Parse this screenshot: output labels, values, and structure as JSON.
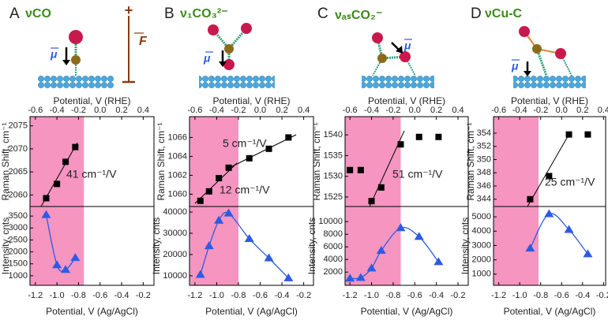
{
  "chart_data": [
    {
      "type": "scatter",
      "label": "A",
      "title": "νCO",
      "dipole_label": "μ",
      "field_label": "F",
      "field_plus": "+",
      "x2label": "Potential, V (RHE)",
      "xlabel": "Potential, V (Ag/AgCl)",
      "xlim": [
        -1.25,
        -0.1
      ],
      "xticks": [
        -1.2,
        {
          "value": -1,
          "label": "-1.0"
        },
        -0.8,
        -0.6,
        -0.4,
        -0.2
      ],
      "x2lim": [
        -0.65,
        0.5
      ],
      "x2ticks": [
        -0.6,
        -0.4,
        -0.2,
        {
          "value": 0,
          "label": "0.0"
        },
        0.2,
        0.4
      ],
      "shade_xmax": -0.75,
      "shade_color": "#f595c0",
      "raman": {
        "ylabel": "Raman Shift, cm⁻¹",
        "ylim": [
          2057.5,
          2077
        ],
        "yticks": [
          2060,
          2065,
          2070,
          2075
        ],
        "x": [
          -1.1,
          -1,
          -0.92,
          -0.83
        ],
        "values": [
          2059.3,
          2062.4,
          2067.2,
          2070.4
        ],
        "color": "#000000",
        "annotations": [
          "41 cm⁻¹/V"
        ]
      },
      "intensity": {
        "ylabel": "Intensity, cnts",
        "ylim": [
          600,
          3900
        ],
        "yticks": [
          1000,
          1500,
          2000,
          2500,
          3000,
          3500
        ],
        "x": [
          -1.1,
          -1,
          -0.92,
          -0.83
        ],
        "values": [
          3550,
          1450,
          1250,
          1750
        ],
        "color": "#2d5be3"
      }
    },
    {
      "type": "scatter",
      "label": "B",
      "title": "ν₁CO₃²⁻",
      "dipole_label": "μ",
      "x2label": "Potential, V (RHE)",
      "xlabel": "Potential, V (Ag/AgCl)",
      "xlim": [
        -1.25,
        -0.11
      ],
      "xticks": [
        -1.2,
        {
          "value": -1,
          "label": "-1.0"
        },
        -0.8,
        -0.6,
        -0.4,
        -0.2
      ],
      "x2lim": [
        -0.65,
        0.49
      ],
      "x2ticks": [
        -0.6,
        -0.4,
        -0.2,
        {
          "value": 0,
          "label": "0.0"
        },
        0.2,
        0.4
      ],
      "shade_xmax": -0.8,
      "shade_color": "#f595c0",
      "raman": {
        "ylabel": "Raman Shift, cm⁻¹",
        "ylim": [
          1058.7,
          1068.2
        ],
        "yticks": [
          1060,
          1062,
          1064,
          1066
        ],
        "x": [
          -1.15,
          -1.07,
          -0.98,
          -0.89,
          -0.7,
          -0.52,
          -0.34
        ],
        "values": [
          1059.3,
          1060.3,
          1061.7,
          1062.8,
          1063.8,
          1064.8,
          1066
        ],
        "color": "#000000",
        "annotations": [
          "5 cm⁻¹/V",
          "12 cm⁻¹/V"
        ]
      },
      "intensity": {
        "ylabel": "Intensity, cnts",
        "ylim": [
          5500,
          42600
        ],
        "yticks": [
          10000,
          20000,
          30000,
          40000
        ],
        "x": [
          -1.15,
          -1.07,
          -0.98,
          -0.89,
          -0.7,
          -0.52,
          -0.34
        ],
        "values": [
          10500,
          24000,
          36000,
          39400,
          27400,
          18300,
          8900
        ],
        "color": "#2d5be3"
      }
    },
    {
      "type": "scatter",
      "label": "C",
      "title": "νₐₛCO₂⁻",
      "dipole_label": "μ",
      "x2label": "Potential, V (RHE)",
      "xlabel": "Potential, V (Ag/AgCl)",
      "xlim": [
        -1.245,
        -0.105
      ],
      "xticks": [
        -1.2,
        {
          "value": -1,
          "label": "-1.0"
        },
        -0.8,
        -0.6,
        -0.4,
        -0.2
      ],
      "x2lim": [
        -0.645,
        0.495
      ],
      "x2ticks": [
        -0.6,
        -0.4,
        -0.2,
        {
          "value": 0,
          "label": "0.0"
        },
        0.2,
        0.4
      ],
      "shade_xmax": -0.73,
      "shade_color": "#f595c0",
      "raman": {
        "ylabel": "Raman Shift, cm⁻¹",
        "ylim": [
          1522.7,
          1544.4
        ],
        "yticks": [
          1525,
          1530,
          1535,
          1540
        ],
        "x": [
          -1.2,
          -1.1,
          -1,
          -0.91,
          -0.73,
          -0.56,
          -0.38
        ],
        "values": [
          1531.5,
          1531.5,
          1524,
          1527.3,
          1537.7,
          1539.5,
          1539.5
        ],
        "color": "#000000",
        "annotations": [
          "51 cm⁻¹/V"
        ]
      },
      "intensity": {
        "ylabel": "Intensity, cnts",
        "ylim": [
          -100,
          12400
        ],
        "yticks": [
          2000,
          4000,
          6000,
          8000,
          10000
        ],
        "x": [
          -1.2,
          -1.1,
          -1,
          -0.91,
          -0.73,
          -0.56,
          -0.38
        ],
        "values": [
          1000,
          1100,
          2600,
          5400,
          9000,
          7600,
          3600
        ],
        "color": "#2d5be3"
      }
    },
    {
      "type": "scatter",
      "label": "D",
      "title": "νCu-C",
      "dipole_label": "μ",
      "x2label": "Potential, V (RHE)",
      "xlabel": "Potential, V (Ag/AgCl)",
      "xlim": [
        -1.25,
        -0.18
      ],
      "xticks": [
        -1.2,
        {
          "value": -1,
          "label": "-1.0"
        },
        -0.8,
        -0.6,
        -0.4,
        -0.2
      ],
      "x2lim": [
        -0.65,
        0.42
      ],
      "x2ticks": [
        -0.6,
        -0.4,
        -0.2,
        {
          "value": 0,
          "label": "0.0"
        },
        0.2,
        0.4
      ],
      "shade_xmax": -0.82,
      "shade_color": "#f595c0",
      "raman": {
        "ylabel": "Raman Shift, cm⁻¹",
        "ylim": [
          342.9,
          356.5
        ],
        "yticks": [
          344,
          346,
          348,
          350,
          352,
          354
        ],
        "x": [
          -0.9,
          -0.72,
          -0.53,
          -0.35
        ],
        "values": [
          344,
          347.5,
          353.8,
          353.8
        ],
        "color": "#000000",
        "annotations": [
          "25 cm⁻¹/V"
        ]
      },
      "intensity": {
        "ylabel": "Intensity, cnts",
        "ylim": [
          220,
          5720
        ],
        "yticks": [
          1000,
          2000,
          3000,
          4000,
          5000
        ],
        "x": [
          -0.9,
          -0.72,
          -0.53,
          -0.35
        ],
        "values": [
          2800,
          5200,
          4100,
          2400
        ],
        "color": "#2d5be3"
      }
    }
  ]
}
